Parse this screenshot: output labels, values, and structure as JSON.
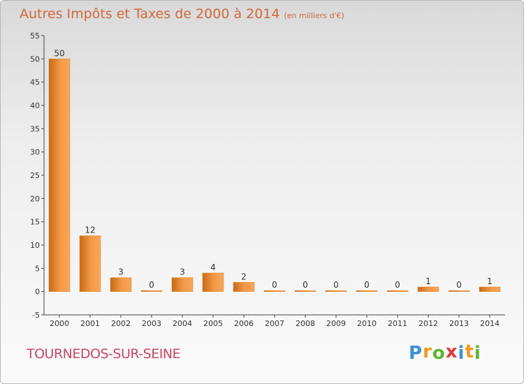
{
  "chart_data": {
    "type": "bar",
    "title": "Autres Impôts et Taxes de 2000 à 2014",
    "subtitle": "(en milliers d'€)",
    "categories": [
      "2000",
      "2001",
      "2002",
      "2003",
      "2004",
      "2005",
      "2006",
      "2007",
      "2008",
      "2009",
      "2010",
      "2011",
      "2012",
      "2013",
      "2014"
    ],
    "values": [
      50,
      12,
      3,
      0,
      3,
      4,
      2,
      0,
      0,
      0,
      0,
      0,
      1,
      0,
      1
    ],
    "ylim": [
      -5,
      55
    ],
    "yticks": [
      -5,
      0,
      5,
      10,
      15,
      20,
      25,
      30,
      35,
      40,
      45,
      50,
      55
    ],
    "grid": false,
    "bar_color": "#f08a2e"
  },
  "footer": {
    "commune": "TOURNEDOS-SUR-SEINE",
    "logo_letters": [
      "P",
      "r",
      "o",
      "x",
      "i",
      "t",
      "i"
    ],
    "logo_colors": [
      "#3a8fd6",
      "#f29a1a",
      "#5cb52f",
      "#e03c3c",
      "#3a8fd6",
      "#f29a1a",
      "#5cb52f"
    ]
  }
}
